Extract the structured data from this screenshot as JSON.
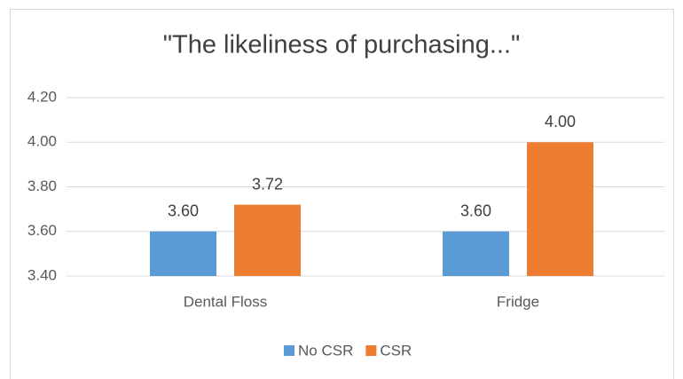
{
  "chart_data": {
    "type": "bar",
    "title": "\"The likeliness of purchasing...\"",
    "categories": [
      "Dental Floss",
      "Fridge"
    ],
    "series": [
      {
        "name": "No CSR",
        "color": "#5b9bd5",
        "values": [
          3.6,
          3.6
        ],
        "value_labels": [
          "3.60",
          "3.60"
        ]
      },
      {
        "name": "CSR",
        "color": "#ed7d31",
        "values": [
          3.72,
          4.0
        ],
        "value_labels": [
          "3.72",
          "4.00"
        ]
      }
    ],
    "ylim": [
      3.4,
      4.2
    ],
    "yticks": [
      {
        "value": 3.4,
        "label": "3.40"
      },
      {
        "value": 3.6,
        "label": "3.60"
      },
      {
        "value": 3.8,
        "label": "3.80"
      },
      {
        "value": 4.0,
        "label": "4.00"
      },
      {
        "value": 4.2,
        "label": "4.20"
      }
    ],
    "grid": true,
    "legend": "bottom"
  }
}
